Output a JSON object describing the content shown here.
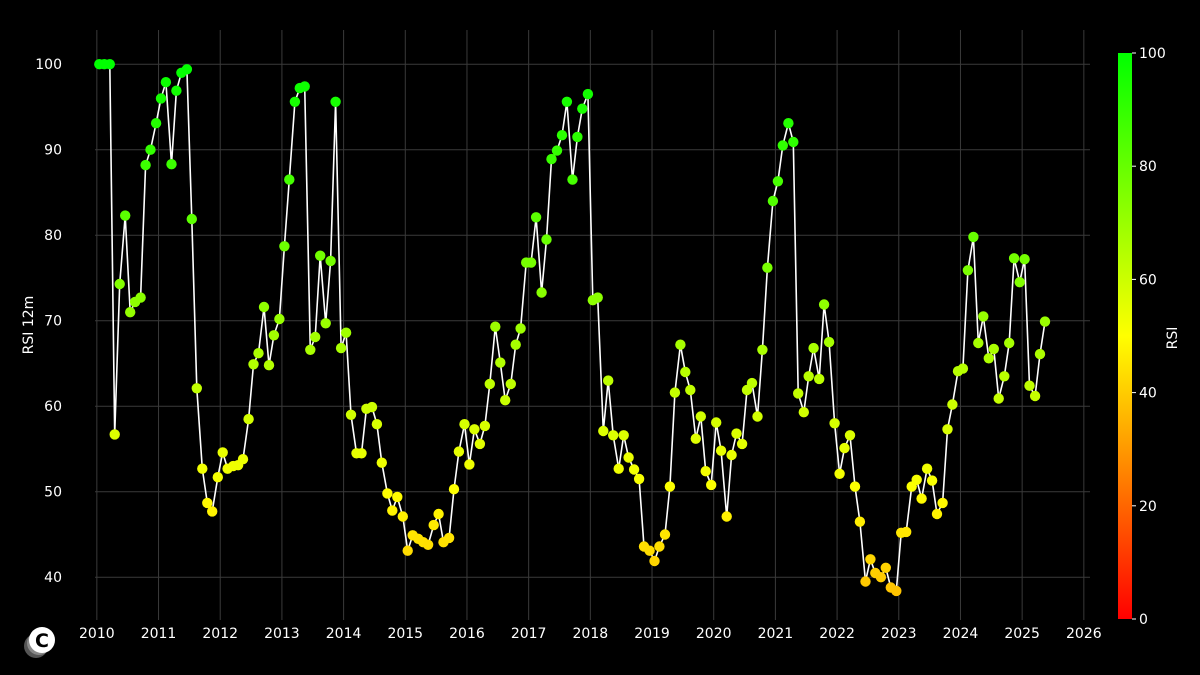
{
  "chart_data": {
    "type": "scatter",
    "title": "",
    "xlabel": "",
    "ylabel": "RSI 12m",
    "xlim": [
      2009.97,
      2026.1
    ],
    "ylim": [
      35,
      104
    ],
    "x_ticks": [
      "2010",
      "2011",
      "2012",
      "2013",
      "2014",
      "2015",
      "2016",
      "2017",
      "2018",
      "2019",
      "2020",
      "2021",
      "2022",
      "2023",
      "2024",
      "2025",
      "2026"
    ],
    "y_ticks": [
      "40",
      "50",
      "60",
      "70",
      "80",
      "90",
      "100"
    ],
    "grid": true,
    "colorbar": {
      "label": "RSI",
      "min": 0,
      "max": 100,
      "ticks": [
        "0",
        "20",
        "40",
        "60",
        "80",
        "100"
      ],
      "colors": [
        "#ff0000",
        "#ffff00",
        "#00ff00"
      ]
    },
    "series": [
      {
        "name": "RSI 12m",
        "line_color": "#ffffff",
        "x": [
          2010.04,
          2010.12,
          2010.21,
          2010.29,
          2010.37,
          2010.46,
          2010.54,
          2010.62,
          2010.71,
          2010.79,
          2010.87,
          2010.96,
          2011.04,
          2011.12,
          2011.21,
          2011.29,
          2011.37,
          2011.46,
          2011.54,
          2011.62,
          2011.71,
          2011.79,
          2011.87,
          2011.96,
          2012.04,
          2012.12,
          2012.21,
          2012.29,
          2012.37,
          2012.46,
          2012.54,
          2012.62,
          2012.71,
          2012.79,
          2012.87,
          2012.96,
          2013.04,
          2013.12,
          2013.21,
          2013.29,
          2013.37,
          2013.46,
          2013.54,
          2013.62,
          2013.71,
          2013.79,
          2013.87,
          2013.96,
          2014.04,
          2014.12,
          2014.21,
          2014.29,
          2014.37,
          2014.46,
          2014.54,
          2014.62,
          2014.71,
          2014.79,
          2014.87,
          2014.96,
          2015.04,
          2015.12,
          2015.21,
          2015.29,
          2015.37,
          2015.46,
          2015.54,
          2015.62,
          2015.71,
          2015.79,
          2015.87,
          2015.96,
          2016.04,
          2016.12,
          2016.21,
          2016.29,
          2016.37,
          2016.46,
          2016.54,
          2016.62,
          2016.71,
          2016.79,
          2016.87,
          2016.96,
          2017.04,
          2017.12,
          2017.21,
          2017.29,
          2017.37,
          2017.46,
          2017.54,
          2017.62,
          2017.71,
          2017.79,
          2017.87,
          2017.96,
          2018.04,
          2018.12,
          2018.21,
          2018.29,
          2018.37,
          2018.46,
          2018.54,
          2018.62,
          2018.71,
          2018.79,
          2018.87,
          2018.96,
          2019.04,
          2019.12,
          2019.21,
          2019.29,
          2019.37,
          2019.46,
          2019.54,
          2019.62,
          2019.71,
          2019.79,
          2019.87,
          2019.96,
          2020.04,
          2020.12,
          2020.21,
          2020.29,
          2020.37,
          2020.46,
          2020.54,
          2020.62,
          2020.71,
          2020.79,
          2020.87,
          2020.96,
          2021.04,
          2021.12,
          2021.21,
          2021.29,
          2021.37,
          2021.46,
          2021.54,
          2021.62,
          2021.71,
          2021.79,
          2021.87,
          2021.96,
          2022.04,
          2022.12,
          2022.21,
          2022.29,
          2022.37,
          2022.46,
          2022.54,
          2022.62,
          2022.71,
          2022.79,
          2022.87,
          2022.96,
          2023.04,
          2023.12,
          2023.21,
          2023.29,
          2023.37,
          2023.46,
          2023.54,
          2023.62,
          2023.71,
          2023.79,
          2023.87,
          2023.96,
          2024.04,
          2024.12,
          2024.21,
          2024.29,
          2024.37,
          2024.46,
          2024.54,
          2024.62,
          2024.71,
          2024.79,
          2024.87,
          2024.96,
          2025.04,
          2025.12,
          2025.21,
          2025.29,
          2025.37
        ],
        "values": [
          100,
          100,
          100,
          56.7,
          74.3,
          82.3,
          71,
          72.2,
          72.7,
          88.2,
          90,
          93.1,
          96,
          97.9,
          88.3,
          96.9,
          99,
          99.4,
          81.9,
          62.1,
          52.7,
          48.7,
          47.7,
          51.7,
          54.6,
          52.7,
          53,
          53.1,
          53.8,
          58.5,
          64.9,
          66.2,
          71.6,
          64.8,
          68.3,
          70.2,
          78.7,
          86.5,
          95.6,
          97.2,
          97.4,
          66.6,
          68.1,
          77.6,
          69.7,
          77,
          95.6,
          66.8,
          68.6,
          59,
          54.5,
          54.5,
          59.7,
          59.9,
          57.9,
          53.4,
          49.8,
          47.8,
          49.4,
          47.1,
          43.1,
          44.9,
          44.5,
          44.1,
          43.8,
          46.1,
          47.4,
          44.1,
          44.6,
          50.3,
          54.7,
          57.9,
          53.2,
          57.3,
          55.6,
          57.7,
          62.6,
          69.3,
          65.1,
          60.7,
          62.6,
          67.2,
          69.1,
          76.8,
          76.8,
          82.1,
          73.3,
          79.5,
          88.9,
          89.9,
          91.7,
          95.6,
          86.5,
          91.5,
          94.8,
          96.5,
          72.4,
          72.7,
          57.1,
          63,
          56.6,
          52.7,
          56.6,
          54,
          52.6,
          51.5,
          43.6,
          43.1,
          41.9,
          43.6,
          45,
          50.6,
          61.6,
          67.2,
          64,
          61.9,
          56.2,
          58.8,
          52.4,
          50.8,
          58.1,
          54.8,
          47.1,
          54.3,
          56.8,
          55.6,
          61.9,
          62.7,
          58.8,
          66.6,
          76.2,
          84,
          86.3,
          90.5,
          93.1,
          90.9,
          61.5,
          59.3,
          63.5,
          66.8,
          63.2,
          71.9,
          67.5,
          58,
          52.1,
          55.1,
          56.6,
          50.6,
          46.5,
          39.5,
          42.1,
          40.5,
          40,
          41.1,
          38.8,
          38.4,
          45.2,
          45.3,
          50.6,
          51.4,
          49.2,
          52.7,
          51.3,
          47.4,
          48.7,
          57.3,
          60.2,
          64.1,
          64.4,
          75.9,
          79.8,
          67.4,
          70.5,
          65.6,
          66.7,
          60.9,
          63.5,
          67.4,
          77.3,
          74.5,
          77.2,
          62.4,
          61.2,
          66.1,
          69.9
        ]
      }
    ]
  },
  "logo": {
    "label": "C"
  }
}
